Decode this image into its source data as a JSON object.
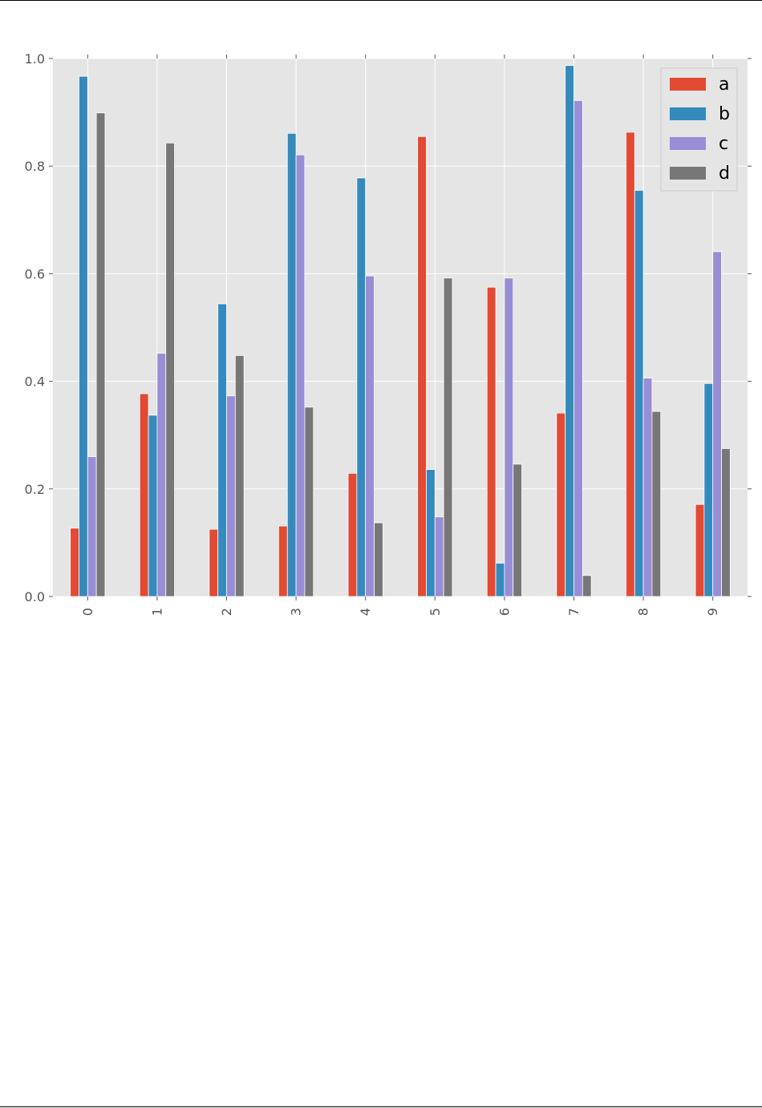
{
  "chart_data": {
    "type": "bar",
    "title": "",
    "xlabel": "",
    "ylabel": "",
    "categories": [
      "0",
      "1",
      "2",
      "3",
      "4",
      "5",
      "6",
      "7",
      "8",
      "9"
    ],
    "series": [
      {
        "name": "a",
        "color": "#E24A33",
        "values": [
          0.127,
          0.377,
          0.125,
          0.131,
          0.229,
          0.855,
          0.575,
          0.341,
          0.863,
          0.171
        ]
      },
      {
        "name": "b",
        "color": "#348ABD",
        "values": [
          0.967,
          0.337,
          0.544,
          0.861,
          0.778,
          0.236,
          0.062,
          0.987,
          0.755,
          0.396
        ]
      },
      {
        "name": "c",
        "color": "#988ED5",
        "values": [
          0.26,
          0.452,
          0.373,
          0.821,
          0.596,
          0.148,
          0.592,
          0.922,
          0.406,
          0.641
        ]
      },
      {
        "name": "d",
        "color": "#777777",
        "values": [
          0.899,
          0.843,
          0.448,
          0.352,
          0.137,
          0.592,
          0.246,
          0.039,
          0.344,
          0.275
        ]
      }
    ],
    "yticks": [
      "0.0",
      "0.2",
      "0.4",
      "0.6",
      "0.8",
      "1.0"
    ],
    "ylim": [
      0,
      1.0
    ],
    "grid": true,
    "legend_position": "top-right",
    "xtick_rotation": "vertical"
  }
}
